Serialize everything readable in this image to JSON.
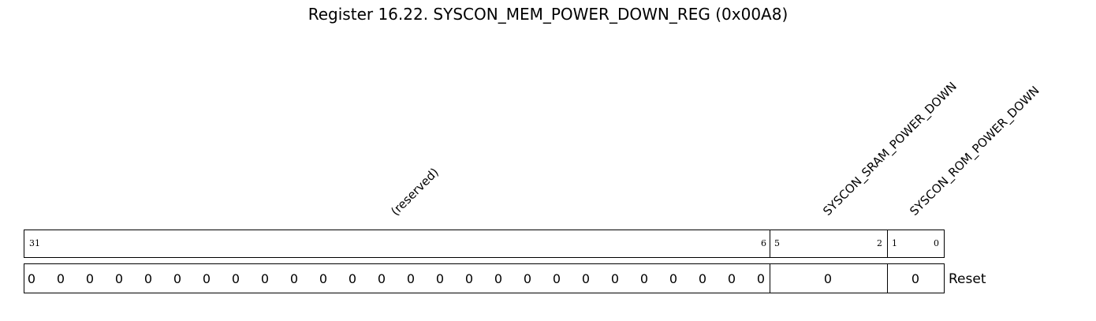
{
  "title": "Register 16.22. SYSCON_MEM_POWER_DOWN_REG (0x00A8)",
  "fields": [
    {
      "label": "(reserved)",
      "msb": "31",
      "lsb": "6",
      "reset_values": [
        "0",
        "0",
        "0",
        "0",
        "0",
        "0",
        "0",
        "0",
        "0",
        "0",
        "0",
        "0",
        "0",
        "0",
        "0",
        "0",
        "0",
        "0",
        "0",
        "0",
        "0",
        "0",
        "0",
        "0",
        "0",
        "0"
      ]
    },
    {
      "label": "SYSCON_SRAM_POWER_DOWN",
      "msb": "5",
      "lsb": "2",
      "reset_values": [
        "0"
      ]
    },
    {
      "label": "SYSCON_ROM_POWER_DOWN",
      "msb": "1",
      "lsb": "0",
      "reset_values": [
        "0"
      ]
    }
  ],
  "reset_label": "Reset"
}
